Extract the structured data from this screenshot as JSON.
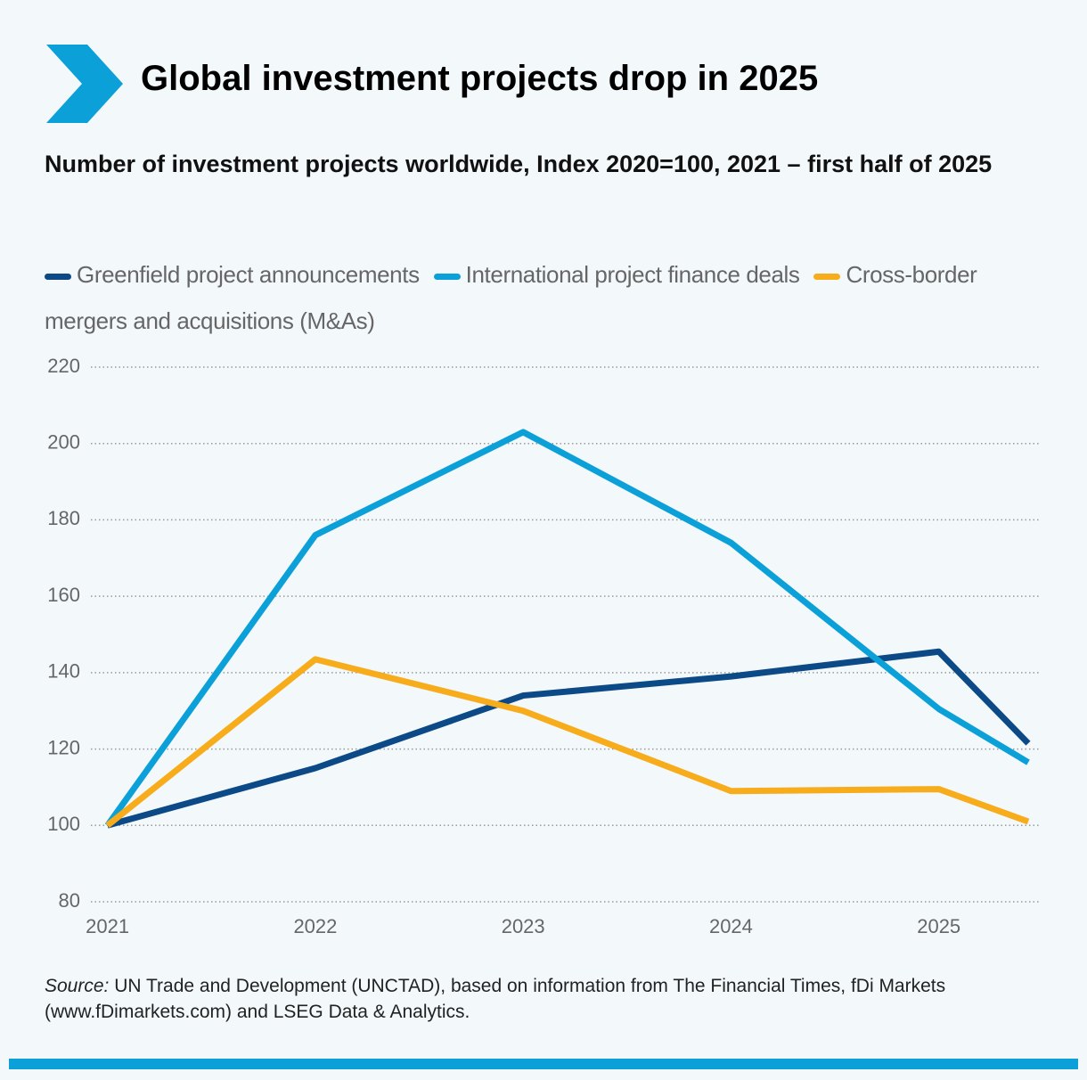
{
  "chart_data": {
    "type": "line",
    "title": "Global investment projects drop in 2025",
    "subtitle": "Number of investment projects worldwide, Index 2020=100, 2021 – first half of 2025",
    "x": [
      2021,
      2022,
      2023,
      2024,
      2025,
      2025.43
    ],
    "series": [
      {
        "name": "Greenfield project announcements",
        "color": "#0b4a86",
        "values": [
          100,
          115,
          134,
          139,
          145.5,
          121.5
        ]
      },
      {
        "name": "International project finance deals",
        "color": "#0ca0d8",
        "values": [
          100,
          176,
          203,
          174,
          130.5,
          116.5
        ]
      },
      {
        "name": "Cross-border mergers and acquisitions (M&As)",
        "color": "#f7ac1c",
        "values": [
          100,
          143.5,
          130,
          109,
          109.5,
          101
        ]
      }
    ],
    "xlim": [
      2020.92,
      2025.49
    ],
    "xticks": [
      2021,
      2022,
      2023,
      2024,
      2025
    ],
    "ylim": [
      80,
      220
    ],
    "yticks": [
      80,
      100,
      120,
      140,
      160,
      180,
      200,
      220
    ],
    "grid": true,
    "source_label": "Source:",
    "source": "UN Trade and Development (UNCTAD), based on information from The Financial Times, fDi Markets (www.fDimarkets.com) and LSEG Data & Analytics."
  }
}
